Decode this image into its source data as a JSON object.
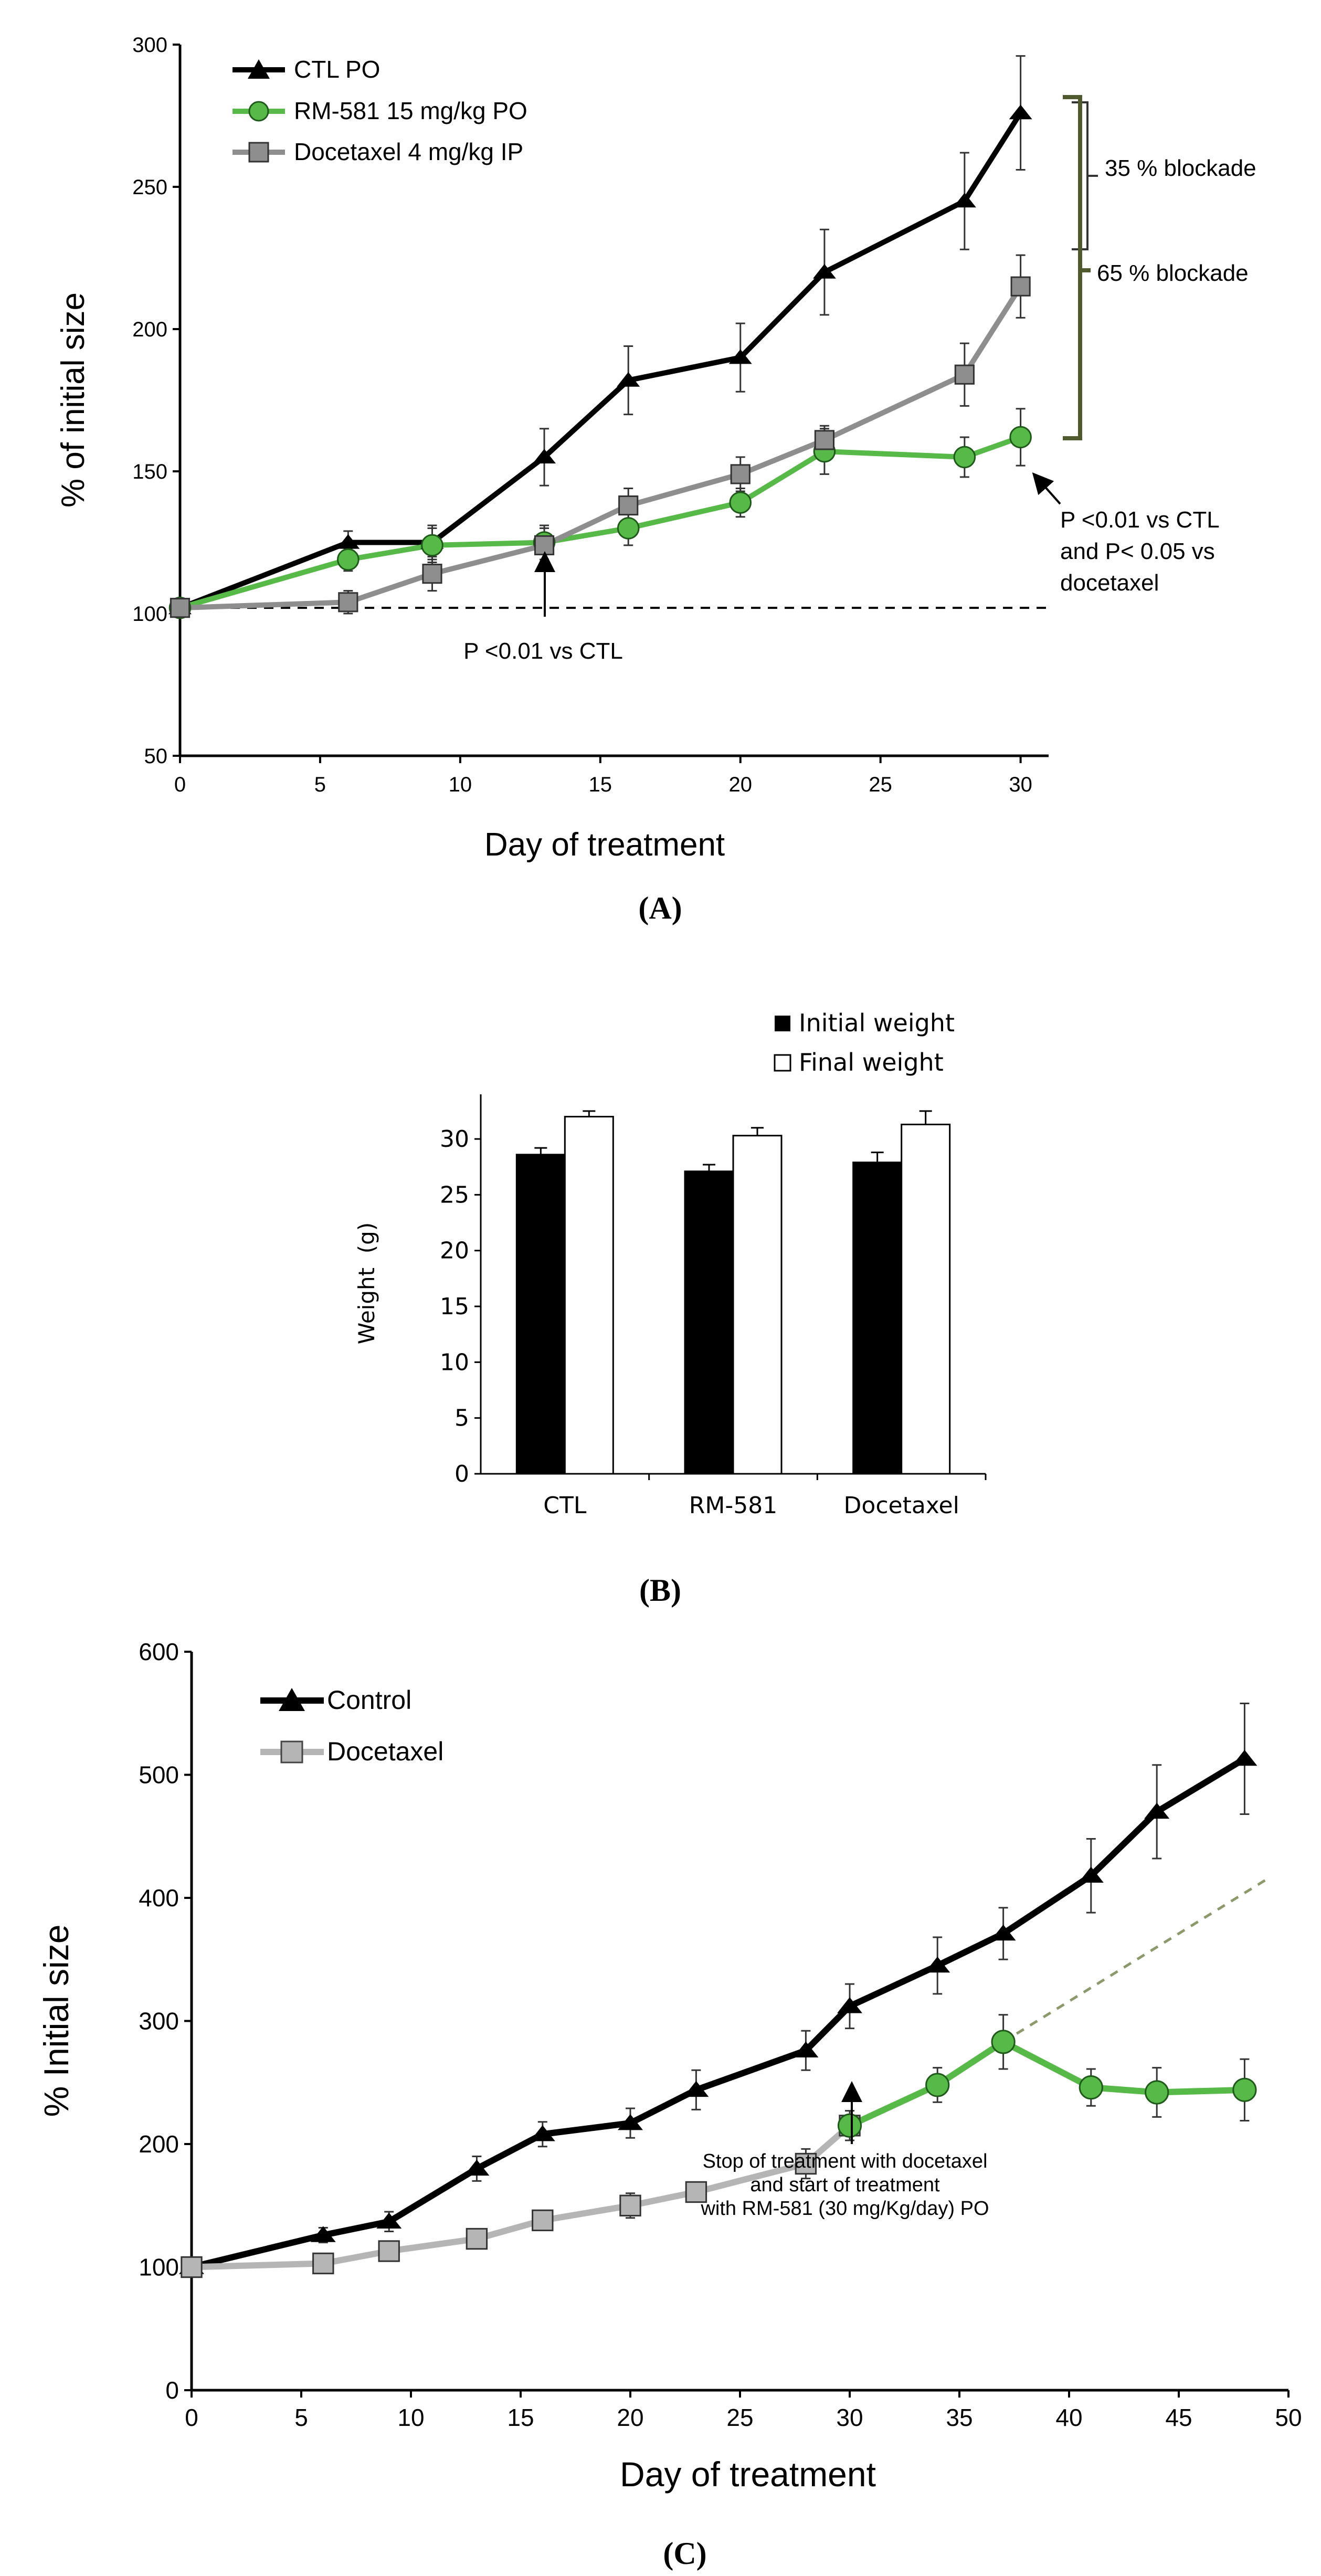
{
  "chart_data": [
    {
      "panel_label": "(A)",
      "type": "line",
      "xlabel": "Day of treatment",
      "ylabel": "% of initial size",
      "xlim": [
        0,
        31
      ],
      "ylim": [
        50,
        300
      ],
      "xticks": [
        "0",
        "5",
        "10",
        "15",
        "20",
        "25",
        "30"
      ],
      "yticks": [
        "50",
        "100",
        "150",
        "200",
        "250",
        "300"
      ],
      "grid": false,
      "legend_position": "top-left",
      "series": [
        {
          "name": "CTL PO",
          "color": "#000000",
          "marker": "triangle",
          "x": [
            0,
            6,
            9,
            13,
            16,
            20,
            23,
            28,
            30
          ],
          "y": [
            102,
            125,
            125,
            155,
            182,
            190,
            220,
            245,
            276
          ],
          "err": [
            0,
            4,
            6,
            10,
            12,
            12,
            15,
            17,
            20
          ]
        },
        {
          "name": "RM-581 15 mg/kg PO",
          "color": "#57b947",
          "marker": "circle",
          "x": [
            0,
            6,
            9,
            13,
            16,
            20,
            23,
            28,
            30
          ],
          "y": [
            102,
            119,
            124,
            125,
            130,
            139,
            157,
            155,
            162
          ],
          "err": [
            0,
            4,
            6,
            6,
            6,
            5,
            8,
            7,
            10
          ]
        },
        {
          "name": "Docetaxel 4 mg/kg IP",
          "color": "#8e8e8e",
          "marker": "square",
          "x": [
            0,
            6,
            9,
            13,
            16,
            20,
            23,
            28,
            30
          ],
          "y": [
            102,
            104,
            114,
            124,
            138,
            149,
            161,
            184,
            215
          ],
          "err": [
            0,
            4,
            6,
            6,
            6,
            6,
            5,
            11,
            11
          ]
        }
      ],
      "reference_line": {
        "y": 102,
        "style": "dashed"
      },
      "annotations": [
        "35 % blockade",
        "65 % blockade",
        "P <0.01 vs CTL",
        "P <0.01 vs CTL",
        "and P< 0.05 vs",
        "docetaxel"
      ]
    },
    {
      "panel_label": "(B)",
      "type": "bar",
      "categories": [
        "CTL",
        "RM-581",
        "Docetaxel"
      ],
      "ylabel": "Weight  (g)",
      "ylim": [
        0,
        34
      ],
      "yticks": [
        "0",
        "5",
        "10",
        "15",
        "20",
        "25",
        "30"
      ],
      "legend_position": "top",
      "series": [
        {
          "name": "Initial weight",
          "color": "#000000",
          "values": [
            28.6,
            27.1,
            27.9
          ],
          "err": [
            0.6,
            0.6,
            0.9
          ]
        },
        {
          "name": "Final weight",
          "color": "#ffffff",
          "values": [
            32.0,
            30.3,
            31.3
          ],
          "err": [
            0.5,
            0.7,
            1.2
          ]
        }
      ]
    },
    {
      "panel_label": "(C)",
      "type": "line",
      "xlabel": "Day of treatment",
      "ylabel": "% Initial size",
      "xlim": [
        0,
        50
      ],
      "ylim": [
        0,
        600
      ],
      "xticks": [
        "0",
        "5",
        "10",
        "15",
        "20",
        "25",
        "30",
        "35",
        "40",
        "45",
        "50"
      ],
      "yticks": [
        "0",
        "100",
        "200",
        "300",
        "400",
        "500",
        "600"
      ],
      "grid": false,
      "legend_position": "top-left",
      "series": [
        {
          "name": "Control",
          "color": "#000000",
          "marker": "triangle",
          "x": [
            0,
            6,
            9,
            13,
            16,
            20,
            23,
            28,
            30,
            34,
            37,
            41,
            44,
            48
          ],
          "y": [
            100,
            126,
            137,
            180,
            208,
            217,
            244,
            276,
            312,
            345,
            371,
            418,
            470,
            513
          ],
          "err": [
            0,
            6,
            8,
            10,
            10,
            12,
            16,
            16,
            18,
            23,
            21,
            30,
            38,
            45
          ]
        },
        {
          "name": "Docetaxel",
          "color": "#b5b5b5",
          "marker": "square",
          "x": [
            0,
            6,
            9,
            13,
            16,
            20,
            23,
            28,
            30
          ],
          "y": [
            100,
            103,
            113,
            123,
            138,
            150,
            161,
            184,
            215
          ],
          "err": [
            0,
            4,
            5,
            6,
            6,
            10,
            6,
            12,
            12
          ]
        },
        {
          "color": "#57b947",
          "marker": "circle",
          "x": [
            30,
            34,
            37,
            41,
            44,
            48
          ],
          "y": [
            215,
            248,
            283,
            246,
            242,
            244
          ],
          "err": [
            0,
            14,
            22,
            15,
            20,
            25
          ]
        }
      ],
      "projection_line": {
        "x": [
          37,
          49
        ],
        "y": [
          283,
          415
        ],
        "style": "dashed",
        "color": "#8c9a6b"
      },
      "annotations": [
        "Stop of treatment with docetaxel",
        "and start of treatment",
        "with RM-581 (30 mg/Kg/day) PO"
      ]
    }
  ],
  "panel_labels": {
    "a": "(A)",
    "b": "(B)",
    "c": "(C)"
  },
  "colors": {
    "black": "#000000",
    "green": "#57b947",
    "gray": "#8e8e8e",
    "light_gray": "#b5b5b5",
    "bracket": "#4f5b2e"
  }
}
